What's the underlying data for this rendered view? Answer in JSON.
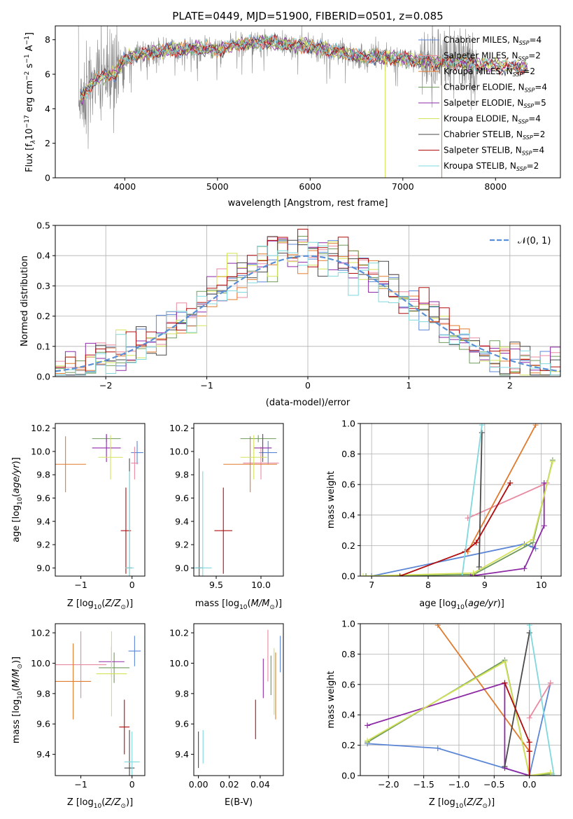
{
  "figure_title": "PLATE=0449, MJD=51900, FIBERID=0501, z=0.085",
  "colors": {
    "Chabrier MILES": "#5b86d6",
    "Salpeter MILES": "#e88aa0",
    "Kroupa MILES": "#e07b2e",
    "Chabrier ELODIE": "#6f9a5a",
    "Salpeter ELODIE": "#8e2aa6",
    "Kroupa ELODIE": "#d4e25a",
    "Chabrier STELIB": "#4a4a4a",
    "Salpeter STELIB": "#b00c0c",
    "Kroupa STELIB": "#7fd8dc",
    "normal": "#5b8fd6",
    "data": "#888888"
  },
  "chart_data": [
    {
      "id": "spectrum",
      "type": "line",
      "title": "PLATE=0449, MJD=51900, FIBERID=0501, z=0.085",
      "xlabel": "wavelength [Angstrom, rest frame]",
      "ylabel": "Flux [f_λ 10^-17 erg cm^-2 s^-1 A^-1]",
      "xlim": [
        3250,
        8700
      ],
      "ylim": [
        0,
        8.8
      ],
      "xticks": [
        4000,
        5000,
        6000,
        7000,
        8000
      ],
      "yticks": [
        0,
        2,
        4,
        6,
        8
      ],
      "legend_position": "top-right",
      "legend": [
        {
          "name": "Chabrier MILES",
          "nssp": "N_SSP=4"
        },
        {
          "name": "Salpeter MILES",
          "nssp": "N_SSP=2"
        },
        {
          "name": "Kroupa MILES",
          "nssp": "N_SSP=2"
        },
        {
          "name": "Chabrier ELODIE",
          "nssp": "N_SSP=4"
        },
        {
          "name": "Salpeter ELODIE",
          "nssp": "N_SSP=5"
        },
        {
          "name": "Kroupa ELODIE",
          "nssp": "N_SSP=4"
        },
        {
          "name": "Chabrier STELIB",
          "nssp": "N_SSP=2"
        },
        {
          "name": "Salpeter STELIB",
          "nssp": "N_SSP=4"
        },
        {
          "name": "Kroupa STELIB",
          "nssp": "N_SSP=2"
        }
      ],
      "continuum": {
        "x": [
          3500,
          3700,
          3900,
          4000,
          4200,
          4500,
          4800,
          5000,
          5200,
          5500,
          5800,
          6000,
          6300,
          6600,
          7000,
          7300,
          7600,
          8000,
          8300
        ],
        "y": [
          4.4,
          5.8,
          6.0,
          6.9,
          7.2,
          7.4,
          7.5,
          7.4,
          7.7,
          7.9,
          7.7,
          7.6,
          7.3,
          7.0,
          6.9,
          6.7,
          6.7,
          6.5,
          6.4
        ]
      },
      "data_range": [
        3500,
        7800
      ]
    },
    {
      "id": "residuals",
      "type": "histogram",
      "xlabel": "(data-model)/error",
      "ylabel": "Normed distribution",
      "xlim": [
        -2.5,
        2.5
      ],
      "ylim": [
        0,
        0.5
      ],
      "xticks": [
        -2,
        -1,
        0,
        1,
        2
      ],
      "yticks": [
        0,
        0.1,
        0.2,
        0.3,
        0.4,
        0.5
      ],
      "grid": true,
      "legend_position": "top-right",
      "reference_curve": "N(0,1)",
      "bin_width": 0.1
    },
    {
      "id": "age-vs-Z",
      "type": "errorbar",
      "xlabel": "Z [log10(Z/Z_sun)]",
      "ylabel": "age [log10(age/yr)]",
      "xlim": [
        -1.5,
        0.25
      ],
      "ylim": [
        8.93,
        10.24
      ],
      "xticks": [
        -1,
        0
      ],
      "yticks": [
        9.0,
        9.2,
        9.4,
        9.6,
        9.8,
        10.0,
        10.2
      ],
      "points": [
        {
          "model": "Chabrier MILES",
          "x": 0.1,
          "xerr": 0.12,
          "y": 9.99,
          "yerr": 0.1
        },
        {
          "model": "Salpeter MILES",
          "x": 0.05,
          "xerr": 0.07,
          "y": 9.9,
          "yerr": 0.14
        },
        {
          "model": "Kroupa MILES",
          "x": -1.3,
          "xerr": 0.4,
          "y": 9.89,
          "yerr": 0.24
        },
        {
          "model": "Chabrier ELODIE",
          "x": -0.5,
          "xerr": 0.28,
          "y": 10.11,
          "yerr": 0.03
        },
        {
          "model": "Salpeter ELODIE",
          "x": -0.5,
          "xerr": 0.28,
          "y": 10.03,
          "yerr": 0.12
        },
        {
          "model": "Kroupa ELODIE",
          "x": -0.42,
          "xerr": 0.24,
          "y": 9.95,
          "yerr": 0.19
        },
        {
          "model": "Chabrier STELIB",
          "x": -0.05,
          "xerr": 0.05,
          "y": 9.0,
          "yerr": 0.94
        },
        {
          "model": "Salpeter STELIB",
          "x": -0.12,
          "xerr": 0.1,
          "y": 9.32,
          "yerr": 0.37
        },
        {
          "model": "Kroupa STELIB",
          "x": -0.05,
          "xerr": 0.08,
          "y": 9.0,
          "yerr": 0.83
        }
      ]
    },
    {
      "id": "age-vs-mass",
      "type": "errorbar",
      "xlabel": "mass [log10(M/M_sun)]",
      "ylabel": "",
      "xlim": [
        9.25,
        10.25
      ],
      "ylim": [
        8.93,
        10.24
      ],
      "xticks": [
        9.5,
        10.0
      ],
      "yticks": [
        9.0,
        9.2,
        9.4,
        9.6,
        9.8,
        10.0,
        10.2
      ],
      "points": [
        {
          "model": "Chabrier MILES",
          "x": 10.08,
          "xerr": 0.1,
          "y": 9.99,
          "yerr": 0.1
        },
        {
          "model": "Salpeter MILES",
          "x": 10.0,
          "xerr": 0.2,
          "y": 9.9,
          "yerr": 0.14
        },
        {
          "model": "Kroupa MILES",
          "x": 9.88,
          "xerr": 0.3,
          "y": 9.89,
          "yerr": 0.24
        },
        {
          "model": "Chabrier ELODIE",
          "x": 9.97,
          "xerr": 0.2,
          "y": 10.11,
          "yerr": 0.03
        },
        {
          "model": "Salpeter ELODIE",
          "x": 10.02,
          "xerr": 0.1,
          "y": 10.03,
          "yerr": 0.12
        },
        {
          "model": "Kroupa ELODIE",
          "x": 9.92,
          "xerr": 0.15,
          "y": 9.95,
          "yerr": 0.19
        },
        {
          "model": "Chabrier STELIB",
          "x": 9.31,
          "xerr": 0.04,
          "y": 9.0,
          "yerr": 0.94
        },
        {
          "model": "Salpeter STELIB",
          "x": 9.58,
          "xerr": 0.1,
          "y": 9.32,
          "yerr": 0.37
        },
        {
          "model": "Kroupa STELIB",
          "x": 9.35,
          "xerr": 0.1,
          "y": 9.0,
          "yerr": 0.83
        }
      ]
    },
    {
      "id": "weight-vs-age",
      "type": "line",
      "xlabel": "age [log10(age/yr)]",
      "ylabel": "mass weight",
      "xlim": [
        6.8,
        10.35
      ],
      "ylim": [
        0,
        1.0
      ],
      "xticks": [
        7,
        8,
        9,
        10
      ],
      "yticks": [
        0.0,
        0.2,
        0.4,
        0.6,
        0.8,
        1.0
      ],
      "grid": true,
      "series": [
        {
          "model": "Chabrier MILES",
          "x": [
            7.0,
            9.7,
            9.85,
            9.9
          ],
          "y": [
            0.0,
            0.21,
            0.19,
            0.18
          ]
        },
        {
          "model": "Salpeter MILES",
          "x": [
            8.7,
            10.1
          ],
          "y": [
            0.38,
            0.61
          ]
        },
        {
          "model": "Kroupa MILES",
          "x": [
            8.7,
            9.9
          ],
          "y": [
            0.16,
            0.99
          ]
        },
        {
          "model": "Chabrier ELODIE",
          "x": [
            6.9,
            8.8,
            9.85,
            10.2
          ],
          "y": [
            0.0,
            0.01,
            0.22,
            0.76
          ]
        },
        {
          "model": "Salpeter ELODIE",
          "x": [
            8.75,
            9.7,
            10.05,
            10.05
          ],
          "y": [
            0.0,
            0.05,
            0.33,
            0.61
          ]
        },
        {
          "model": "Kroupa ELODIE",
          "x": [
            6.85,
            8.8,
            9.85,
            10.2
          ],
          "y": [
            0.0,
            0.02,
            0.24,
            0.75
          ]
        },
        {
          "model": "Chabrier STELIB",
          "x": [
            8.9,
            8.95
          ],
          "y": [
            0.06,
            0.94
          ]
        },
        {
          "model": "Salpeter STELIB",
          "x": [
            7.5,
            8.65,
            8.85,
            9.45
          ],
          "y": [
            0.0,
            0.16,
            0.22,
            0.61
          ]
        },
        {
          "model": "Kroupa STELIB",
          "x": [
            8.6,
            8.95
          ],
          "y": [
            0.0,
            0.99
          ]
        }
      ]
    },
    {
      "id": "mass-vs-Z",
      "type": "errorbar",
      "xlabel": "Z [log10(Z/Z_sun)]",
      "ylabel": "mass [log10(M/M_sun)]",
      "xlim": [
        -1.5,
        0.25
      ],
      "ylim": [
        9.26,
        10.26
      ],
      "xticks": [
        -1,
        0
      ],
      "yticks": [
        9.4,
        9.6,
        9.8,
        10.0,
        10.2
      ],
      "points": [
        {
          "model": "Chabrier MILES",
          "x": 0.05,
          "xerr": 0.12,
          "y": 10.08,
          "yerr": 0.1
        },
        {
          "model": "Salpeter MILES",
          "x": -1.0,
          "xerr": 0.5,
          "y": 9.99,
          "yerr": 0.22
        },
        {
          "model": "Kroupa MILES",
          "x": -1.15,
          "xerr": 0.35,
          "y": 9.88,
          "yerr": 0.25
        },
        {
          "model": "Chabrier ELODIE",
          "x": -0.35,
          "xerr": 0.3,
          "y": 9.97,
          "yerr": 0.1
        },
        {
          "model": "Salpeter ELODIE",
          "x": -0.4,
          "xerr": 0.25,
          "y": 10.01,
          "yerr": 0.1
        },
        {
          "model": "Kroupa ELODIE",
          "x": -0.4,
          "xerr": 0.3,
          "y": 9.93,
          "yerr": 0.28
        },
        {
          "model": "Chabrier STELIB",
          "x": -0.05,
          "xerr": 0.1,
          "y": 9.31,
          "yerr": 0.25
        },
        {
          "model": "Salpeter STELIB",
          "x": -0.15,
          "xerr": 0.1,
          "y": 9.58,
          "yerr": 0.18
        },
        {
          "model": "Kroupa STELIB",
          "x": 0.0,
          "xerr": 0.15,
          "y": 9.35,
          "yerr": 0.2
        }
      ]
    },
    {
      "id": "mass-vs-EBV",
      "type": "errorbar",
      "xlabel": "E(B-V)",
      "ylabel": "",
      "xlim": [
        -0.003,
        0.055
      ],
      "ylim": [
        9.26,
        10.26
      ],
      "xticks": [
        0.0,
        0.02,
        0.04
      ],
      "yticks": [
        9.4,
        9.6,
        9.8,
        10.0,
        10.2
      ],
      "points": [
        {
          "model": "Chabrier MILES",
          "x": 0.053,
          "xerr": 0,
          "y": 10.06,
          "yerr": 0.12
        },
        {
          "model": "Salpeter MILES",
          "x": 0.045,
          "xerr": 0,
          "y": 10.05,
          "yerr": 0.17
        },
        {
          "model": "Kroupa MILES",
          "x": 0.05,
          "xerr": 0,
          "y": 9.85,
          "yerr": 0.22
        },
        {
          "model": "Chabrier ELODIE",
          "x": 0.047,
          "xerr": 0,
          "y": 9.92,
          "yerr": 0.13
        },
        {
          "model": "Salpeter ELODIE",
          "x": 0.042,
          "xerr": 0,
          "y": 9.9,
          "yerr": 0.13
        },
        {
          "model": "Kroupa ELODIE",
          "x": 0.049,
          "xerr": 0,
          "y": 9.88,
          "yerr": 0.22
        },
        {
          "model": "Chabrier STELIB",
          "x": 0.0,
          "xerr": 0,
          "y": 9.43,
          "yerr": 0.12
        },
        {
          "model": "Salpeter STELIB",
          "x": 0.037,
          "xerr": 0,
          "y": 9.63,
          "yerr": 0.13
        },
        {
          "model": "Kroupa STELIB",
          "x": 0.003,
          "xerr": 0,
          "y": 9.45,
          "yerr": 0.11
        }
      ]
    },
    {
      "id": "weight-vs-Z",
      "type": "line",
      "xlabel": "Z [log10(Z/Z_sun)]",
      "ylabel": "mass weight",
      "xlim": [
        -2.4,
        0.45
      ],
      "ylim": [
        0,
        1.0
      ],
      "xticks": [
        -2.0,
        -1.5,
        -1.0,
        -0.5,
        0.0
      ],
      "yticks": [
        0.0,
        0.2,
        0.4,
        0.6,
        0.8,
        1.0
      ],
      "grid": true,
      "series": [
        {
          "model": "Chabrier MILES",
          "x": [
            -2.3,
            -1.3,
            0.0,
            0.3
          ],
          "y": [
            0.21,
            0.18,
            0.0,
            0.61
          ]
        },
        {
          "model": "Salpeter MILES",
          "x": [
            0.0,
            0.3
          ],
          "y": [
            0.38,
            0.61
          ]
        },
        {
          "model": "Kroupa MILES",
          "x": [
            -1.3,
            0.0
          ],
          "y": [
            0.99,
            0.16
          ]
        },
        {
          "model": "Chabrier ELODIE",
          "x": [
            -2.3,
            -0.35,
            0.0,
            0.3
          ],
          "y": [
            0.22,
            0.76,
            0.0,
            0.01
          ]
        },
        {
          "model": "Salpeter ELODIE",
          "x": [
            -2.3,
            -0.35,
            -0.35,
            0.0
          ],
          "y": [
            0.33,
            0.61,
            0.05,
            0.0
          ]
        },
        {
          "model": "Kroupa ELODIE",
          "x": [
            -2.3,
            -0.35,
            0.0,
            0.3
          ],
          "y": [
            0.23,
            0.75,
            0.0,
            0.02
          ]
        },
        {
          "model": "Chabrier STELIB",
          "x": [
            -0.35,
            0.0
          ],
          "y": [
            0.06,
            0.94
          ]
        },
        {
          "model": "Salpeter STELIB",
          "x": [
            -0.35,
            0.0,
            0.0,
            0.0
          ],
          "y": [
            0.61,
            0.22,
            0.16,
            0.0
          ]
        },
        {
          "model": "Kroupa STELIB",
          "x": [
            0.0,
            0.35
          ],
          "y": [
            0.99,
            0.0
          ]
        }
      ]
    }
  ]
}
